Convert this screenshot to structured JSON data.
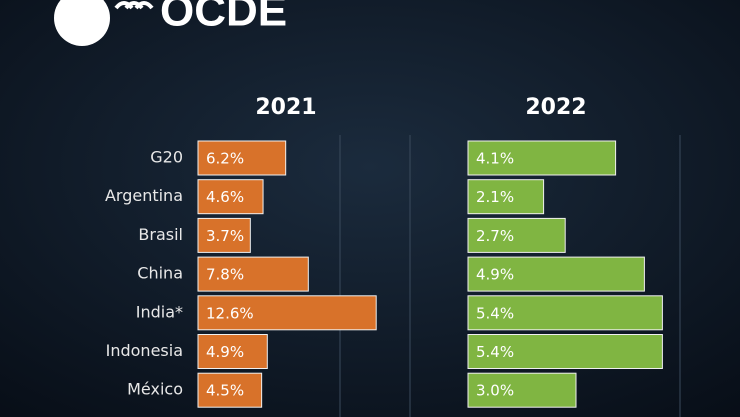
{
  "brand": "OCDE",
  "chart_data": [
    {
      "type": "bar",
      "orientation": "horizontal",
      "title": "2021",
      "categories": [
        "G20",
        "Argentina",
        "Brasil",
        "China",
        "India*",
        "Indonesia",
        "México"
      ],
      "values": [
        6.2,
        4.6,
        3.7,
        7.8,
        12.6,
        4.9,
        4.5
      ],
      "value_labels": [
        "6.2%",
        "4.6%",
        "3.7%",
        "7.8%",
        "12.6%",
        "4.9%",
        "4.5%"
      ],
      "color": "#d8722a",
      "xlim": [
        0,
        14
      ]
    },
    {
      "type": "bar",
      "orientation": "horizontal",
      "title": "2022",
      "values": [
        4.1,
        2.1,
        2.7,
        4.9,
        5.4,
        5.4,
        3.0
      ],
      "value_labels": [
        "4.1%",
        "2.1%",
        "2.7%",
        "4.9%",
        "5.4%",
        "5.4%",
        "3.0%"
      ],
      "color": "#80b542",
      "xlim": [
        0,
        6
      ]
    }
  ]
}
